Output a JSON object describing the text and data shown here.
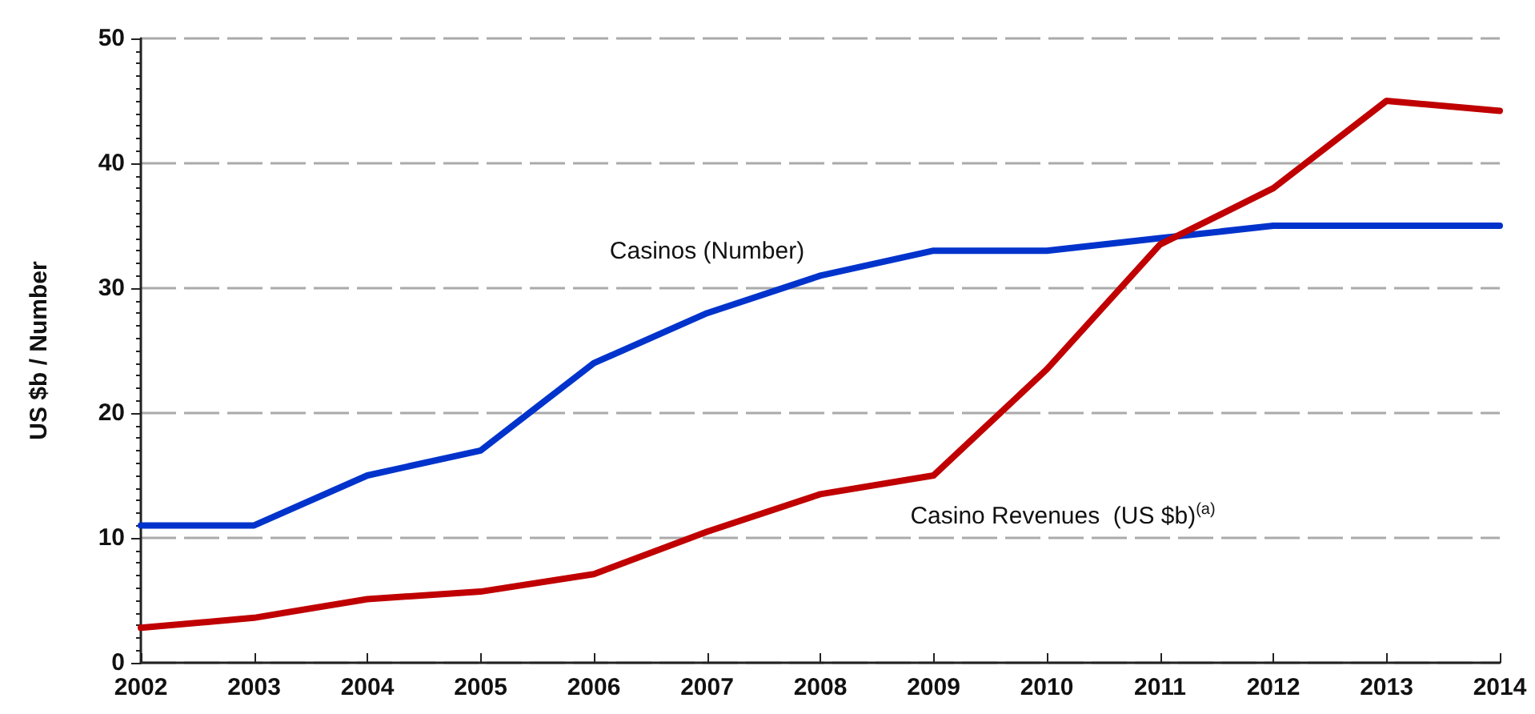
{
  "chart_data": {
    "type": "line",
    "ylabel": "US $b / Number",
    "x": [
      2002,
      2003,
      2004,
      2005,
      2006,
      2007,
      2008,
      2009,
      2010,
      2011,
      2012,
      2013,
      2014
    ],
    "xlim": [
      2002,
      2014
    ],
    "xticks": [
      2002,
      2003,
      2004,
      2005,
      2006,
      2007,
      2008,
      2009,
      2010,
      2011,
      2012,
      2013,
      2014
    ],
    "ylim": [
      0,
      50
    ],
    "yticks": [
      0,
      10,
      20,
      30,
      40,
      50
    ],
    "grid": "y",
    "legend": false,
    "marker": "none",
    "line_style": "solid",
    "series": [
      {
        "name": "Casinos (Number)",
        "color": "#0033cc",
        "values": [
          11,
          11,
          15,
          17,
          24,
          28,
          31,
          33,
          33,
          34,
          35,
          35,
          35
        ]
      },
      {
        "name": "Casino Revenues  (US $b)$^{(a)}$",
        "color": "#c00000",
        "values": [
          2.8,
          3.6,
          5.1,
          5.7,
          7.1,
          10.5,
          13.5,
          15,
          23.5,
          33.5,
          38,
          45,
          44.2
        ]
      }
    ]
  }
}
